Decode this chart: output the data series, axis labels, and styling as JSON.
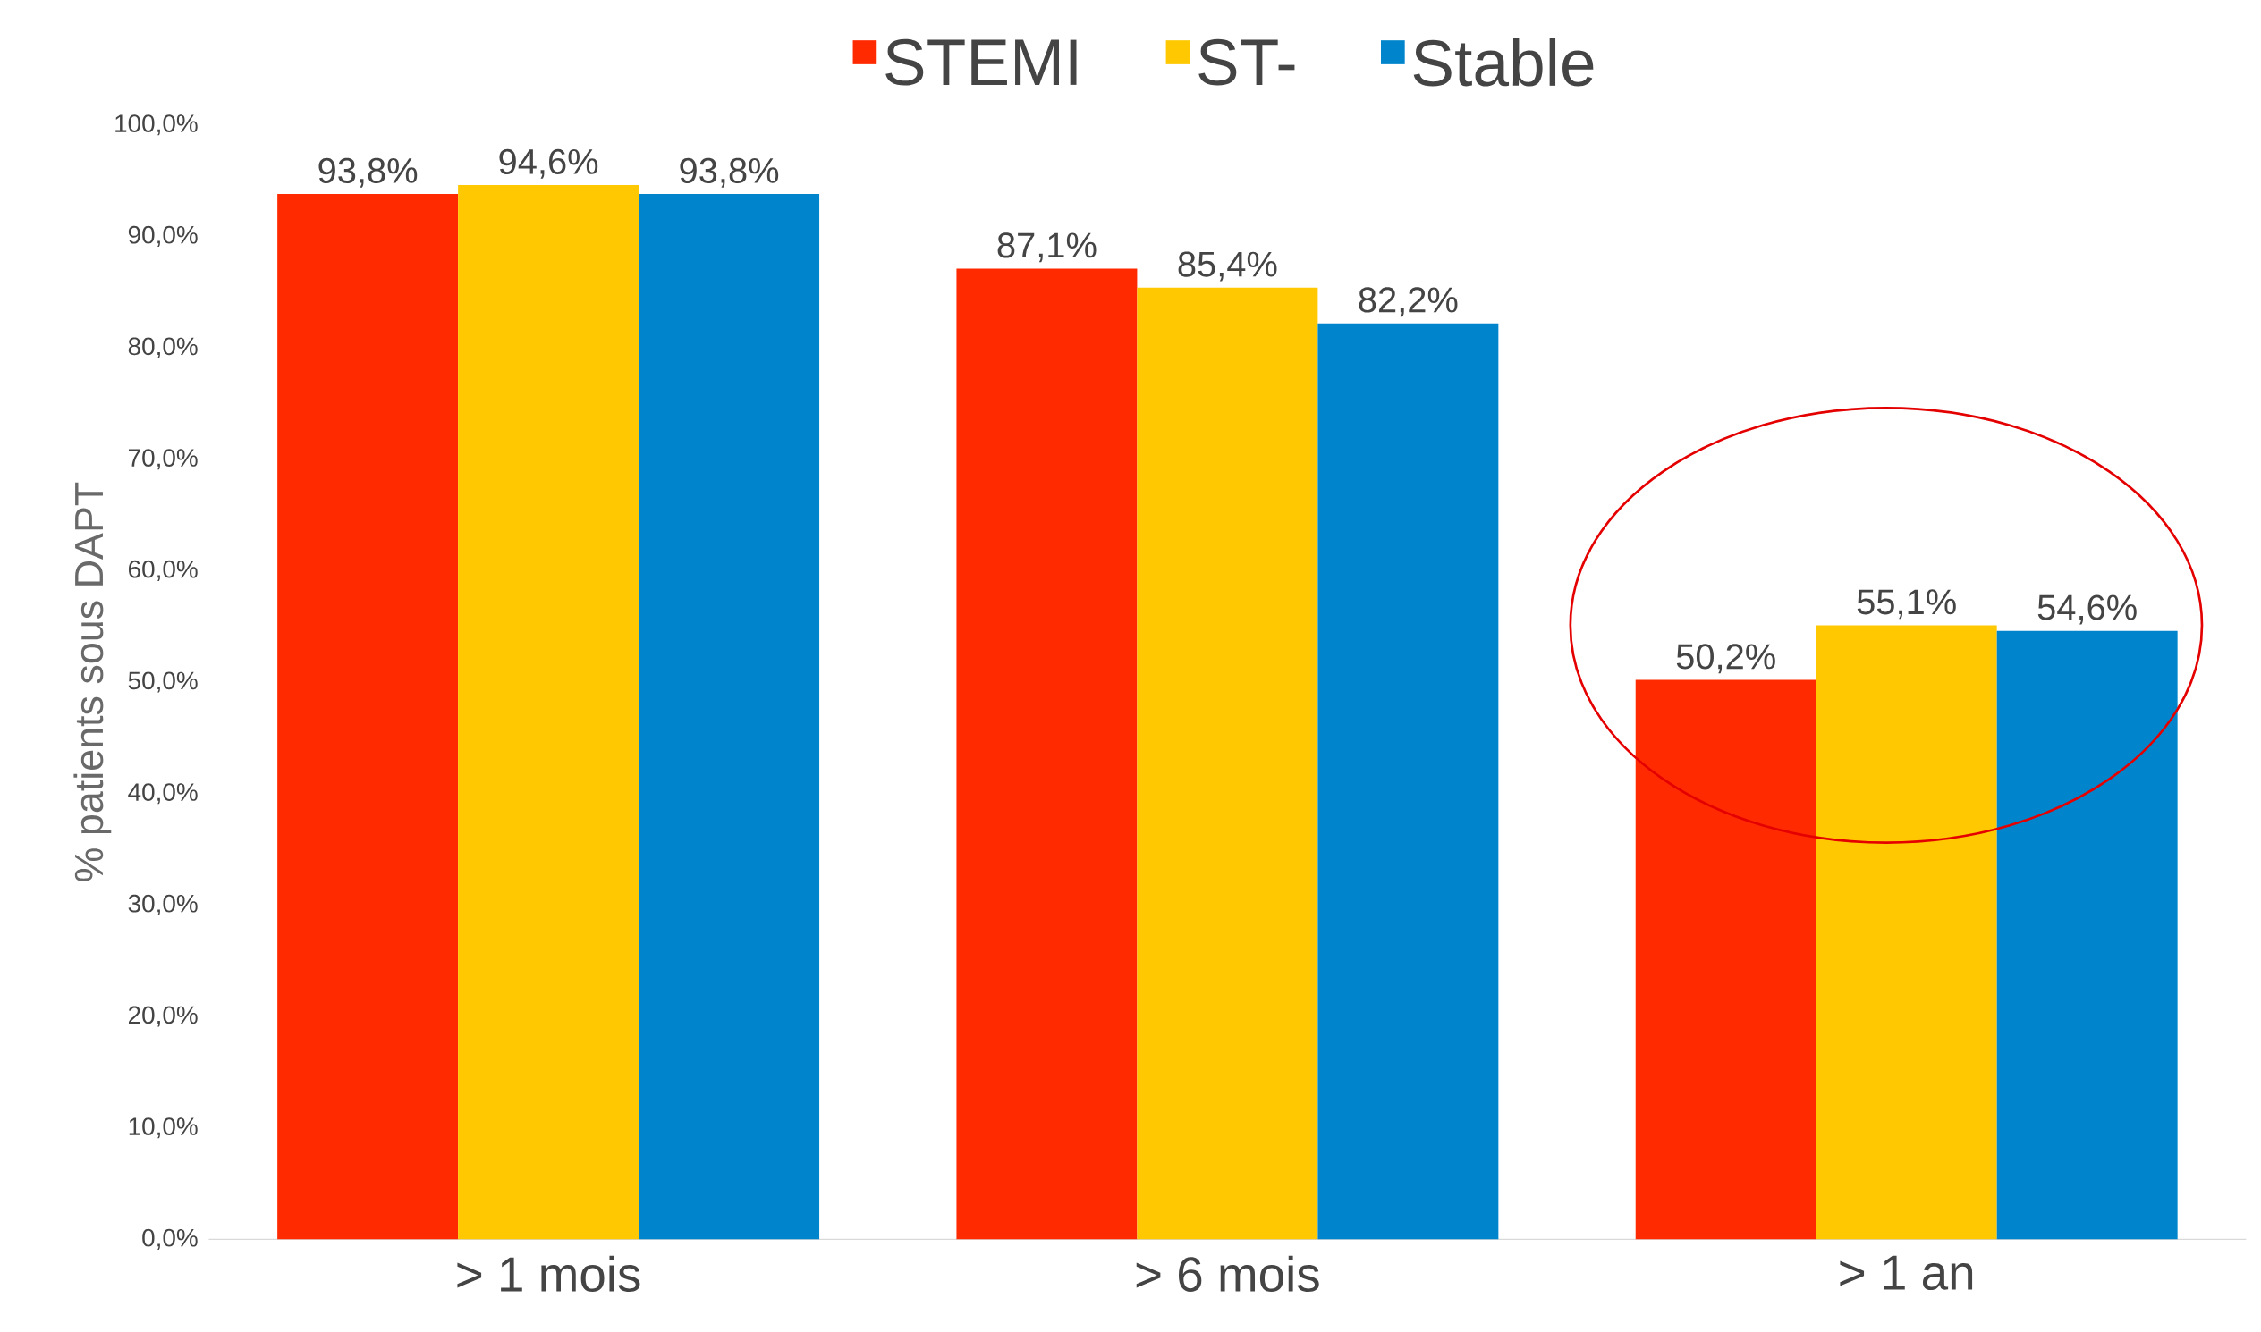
{
  "chart_data": {
    "type": "bar",
    "categories": [
      "> 1 mois",
      "> 6 mois",
      "> 1 an"
    ],
    "series": [
      {
        "name": "STEMI",
        "color": "#ff2a00",
        "values": [
          93.8,
          87.1,
          50.2
        ],
        "value_labels": [
          "93,8%",
          "87,1%",
          "50,2%"
        ]
      },
      {
        "name": "ST-",
        "color": "#ffc800",
        "values": [
          94.6,
          85.4,
          55.1
        ],
        "value_labels": [
          "94,6%",
          "85,4%",
          "55,1%"
        ]
      },
      {
        "name": "Stable",
        "color": "#0085cc",
        "values": [
          93.8,
          82.2,
          54.6
        ],
        "value_labels": [
          "93,8%",
          "82,2%",
          "54,6%"
        ]
      }
    ],
    "ylabel": "% patients sous DAPT",
    "ylim": [
      0,
      100
    ],
    "yticks": [
      {
        "value": 0,
        "label": "0,0%"
      },
      {
        "value": 10,
        "label": "10,0%"
      },
      {
        "value": 20,
        "label": "20,0%"
      },
      {
        "value": 30,
        "label": "30,0%"
      },
      {
        "value": 40,
        "label": "40,0%"
      },
      {
        "value": 50,
        "label": "50,0%"
      },
      {
        "value": 60,
        "label": "60,0%"
      },
      {
        "value": 70,
        "label": "70,0%"
      },
      {
        "value": 80,
        "label": "80,0%"
      },
      {
        "value": 90,
        "label": "90,0%"
      },
      {
        "value": 100,
        "label": "100,0%"
      }
    ],
    "legend": "top",
    "grid": false
  }
}
